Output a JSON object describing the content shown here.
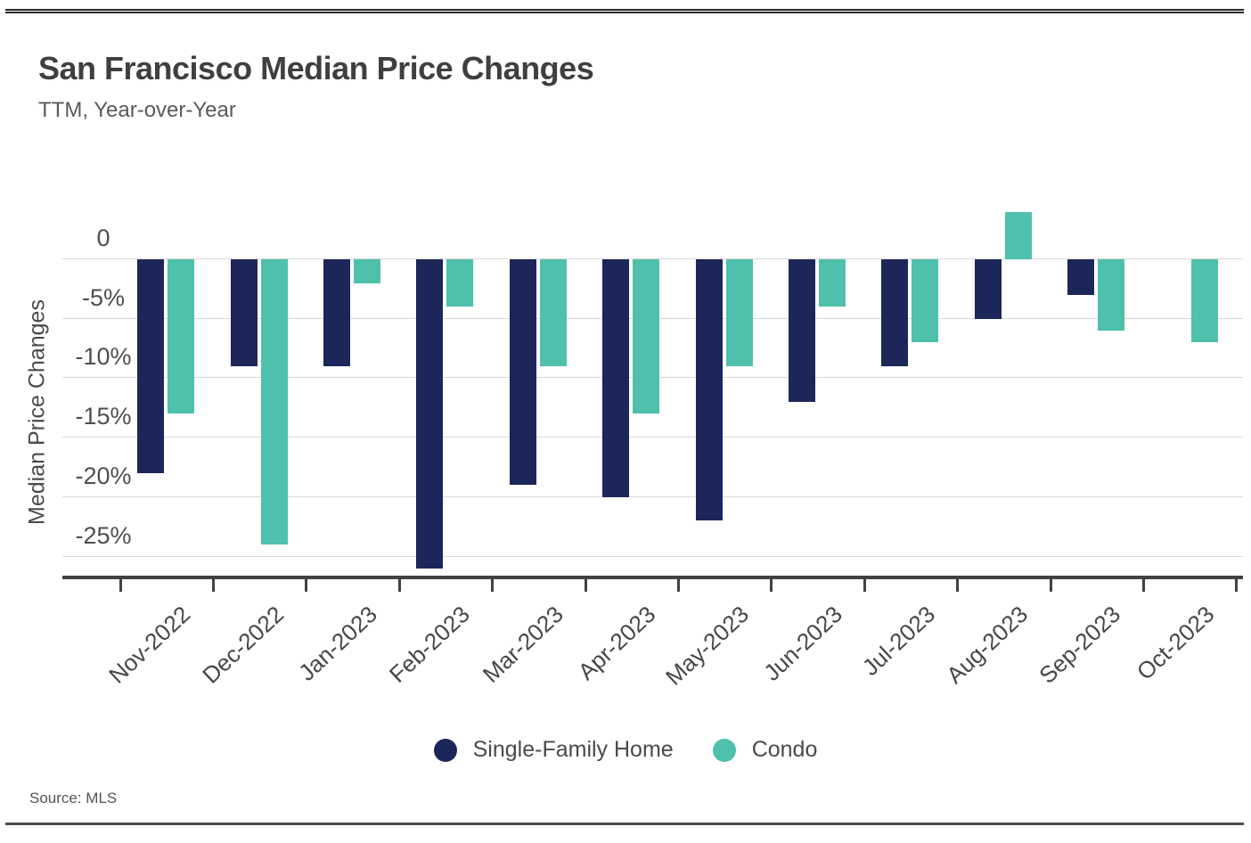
{
  "page": {
    "title": "San Francisco Median Price Changes",
    "subtitle": "TTM, Year-over-Year",
    "source": "Source: MLS"
  },
  "chart_data": {
    "type": "bar",
    "title": "San Francisco Median Price Changes",
    "subtitle": "TTM, Year-over-Year",
    "xlabel": "",
    "ylabel": "Median Price Changes",
    "value_unit": "percent",
    "categories": [
      "Nov-2022",
      "Dec-2022",
      "Jan-2023",
      "Feb-2023",
      "Mar-2023",
      "Apr-2023",
      "May-2023",
      "Jun-2023",
      "Jul-2023",
      "Aug-2023",
      "Sep-2023",
      "Oct-2023"
    ],
    "series": [
      {
        "name": "Single-Family Home",
        "color": "#1c2658",
        "values": [
          -18,
          -9,
          -9,
          -26,
          -19,
          -20,
          -22,
          -12,
          -9,
          -5,
          -3,
          0
        ]
      },
      {
        "name": "Condo",
        "color": "#4ec0ac",
        "values": [
          -13,
          -24,
          -2,
          -4,
          -9,
          -13,
          -9,
          -4,
          -7,
          4,
          -6,
          -7
        ]
      }
    ],
    "yticks": {
      "labels": [
        "0",
        "-5%",
        "-10%",
        "-15%",
        "-20%",
        "-25%"
      ],
      "values": [
        0,
        -5,
        -10,
        -15,
        -20,
        -25
      ]
    },
    "ylim": [
      -27,
      5
    ],
    "grid": true,
    "legend_position": "bottom",
    "source": "Source: MLS"
  }
}
